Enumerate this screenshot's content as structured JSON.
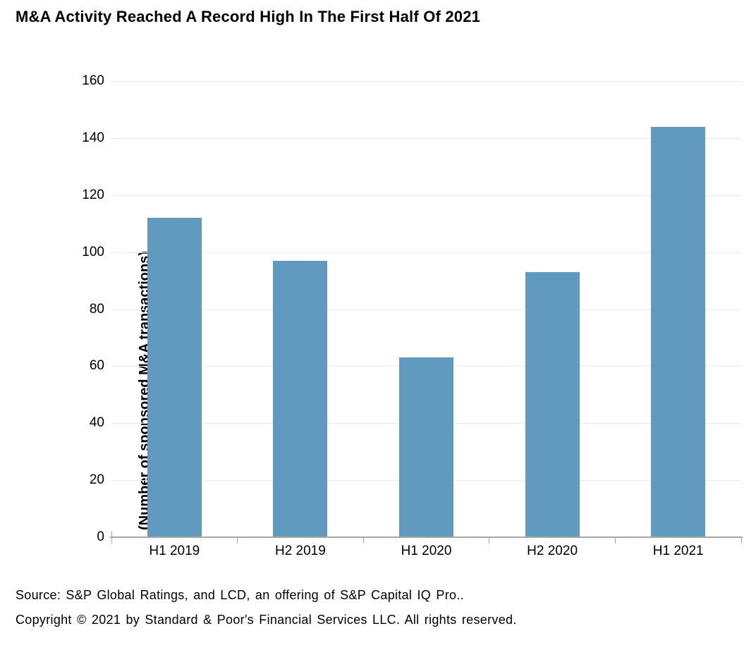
{
  "title": "M&A Activity Reached A Record High In The First Half Of 2021",
  "footer": {
    "source_line": "Source: S&P Global Ratings, and LCD, an offering of S&P Capital IQ Pro..",
    "copyright_line": "Copyright © 2021 by Standard & Poor's Financial Services LLC. All rights reserved."
  },
  "chart_data": {
    "type": "bar",
    "title": "M&A Activity Reached A Record High In The First Half Of 2021",
    "categories": [
      "H1 2019",
      "H2 2019",
      "H1 2020",
      "H2 2020",
      "H1 2021"
    ],
    "values": [
      112,
      97,
      63,
      93,
      144
    ],
    "xlabel": "",
    "ylabel": "(Number of sponsored M&A transactions)",
    "ylim": [
      0,
      160
    ],
    "yticks": [
      0,
      20,
      40,
      60,
      80,
      100,
      120,
      140,
      160
    ],
    "grid": true,
    "legend": false,
    "colors": {
      "bar": "#609abe",
      "gridline": "#e8e8e8",
      "axis": "#a6a6a6",
      "text": "#000000",
      "background": "#ffffff"
    }
  }
}
